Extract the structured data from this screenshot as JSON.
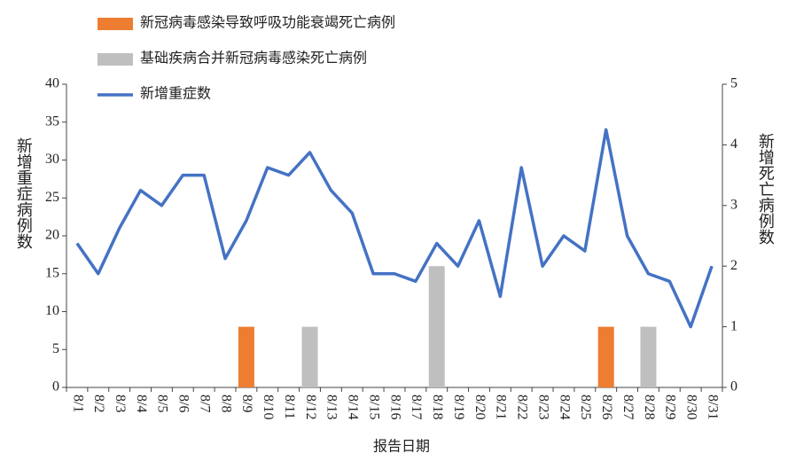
{
  "chart_data": {
    "type": "bar-line",
    "x_label": "报告日期",
    "y_label": "新增重症病例数",
    "y2_label": "新增死亡病例数",
    "categories": [
      "8/1",
      "8/2",
      "8/3",
      "8/4",
      "8/5",
      "8/6",
      "8/7",
      "8/8",
      "8/9",
      "8/10",
      "8/11",
      "8/12",
      "8/13",
      "8/14",
      "8/15",
      "8/16",
      "8/17",
      "8/18",
      "8/19",
      "8/20",
      "8/21",
      "8/22",
      "8/23",
      "8/24",
      "8/25",
      "8/26",
      "8/27",
      "8/28",
      "8/29",
      "8/30",
      "8/31"
    ],
    "series": [
      {
        "name": "新冠病毒感染导致呼吸功能衰竭死亡病例",
        "type": "bar",
        "axis": "y2",
        "color": "#ed7d31",
        "values": [
          0,
          0,
          0,
          0,
          0,
          0,
          0,
          0,
          1,
          0,
          0,
          0,
          0,
          0,
          0,
          0,
          0,
          0,
          0,
          0,
          0,
          0,
          0,
          0,
          0,
          1,
          0,
          0,
          0,
          0,
          0
        ]
      },
      {
        "name": "基础疾病合并新冠病毒感染死亡病例",
        "type": "bar",
        "axis": "y2",
        "color": "#bfbfbf",
        "values": [
          0,
          0,
          0,
          0,
          0,
          0,
          0,
          0,
          0,
          0,
          0,
          1,
          0,
          0,
          0,
          0,
          0,
          2,
          0,
          0,
          0,
          0,
          0,
          0,
          0,
          0,
          0,
          1,
          0,
          0,
          0
        ]
      },
      {
        "name": "新增重症数",
        "type": "line",
        "axis": "y",
        "color": "#4472c4",
        "values": [
          19,
          15,
          21,
          26,
          24,
          28,
          28,
          17,
          22,
          29,
          28,
          31,
          26,
          23,
          15,
          15,
          14,
          19,
          16,
          22,
          12,
          29,
          16,
          20,
          18,
          34,
          20,
          15,
          14,
          8,
          16
        ]
      }
    ],
    "ylim": [
      0,
      40
    ],
    "yticks": [
      0,
      5,
      10,
      15,
      20,
      25,
      30,
      35,
      40
    ],
    "y2lim": [
      0,
      5
    ],
    "y2ticks": [
      0,
      1,
      2,
      3,
      4,
      5
    ]
  }
}
